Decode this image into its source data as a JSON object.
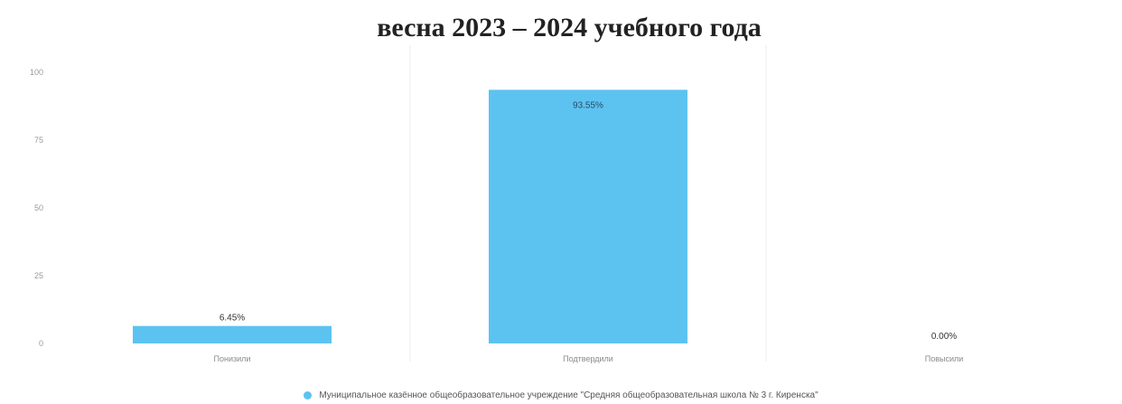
{
  "chart_data": {
    "type": "bar",
    "title": "весна 2023 – 2024 учебного года",
    "ylabel": "",
    "xlabel": "",
    "categories": [
      "Понизили",
      "Подтвердили",
      "Повысили"
    ],
    "series": [
      {
        "name": "Муниципальное казённое общеобразовательное учреждение \"Средняя общеобразовательная школа № 3 г. Киренска\"",
        "values": [
          6.45,
          93.55,
          0.0
        ],
        "data_labels": [
          "6.45%",
          "93.55%",
          "0.00%"
        ],
        "color": "#5cc3f1"
      }
    ],
    "ylim": [
      0,
      100
    ],
    "y_ticks": [
      0,
      25,
      50,
      75,
      100
    ],
    "grid": "vertical",
    "legend_position": "bottom"
  }
}
